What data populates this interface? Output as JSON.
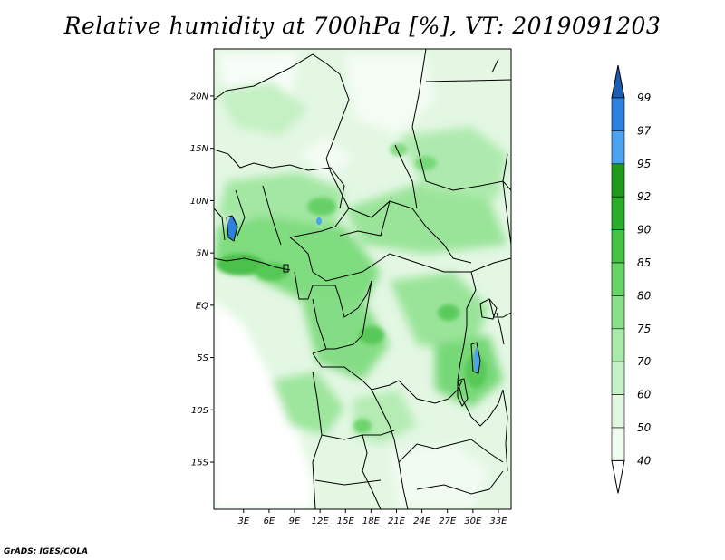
{
  "title": "Relative humidity at 700hPa [%], VT: 2019091203",
  "credit": "GrADS: IGES/COLA",
  "map": {
    "lat_range": [
      -19.5,
      24.5
    ],
    "lon_range": [
      -0.5,
      34.5
    ],
    "lat_ticks": [
      {
        "value": 20,
        "label": "20N"
      },
      {
        "value": 15,
        "label": "15N"
      },
      {
        "value": 10,
        "label": "10N"
      },
      {
        "value": 5,
        "label": "5N"
      },
      {
        "value": 0,
        "label": "EQ"
      },
      {
        "value": -5,
        "label": "5S"
      },
      {
        "value": -10,
        "label": "10S"
      },
      {
        "value": -15,
        "label": "15S"
      }
    ],
    "lon_ticks": [
      {
        "value": 3,
        "label": "3E"
      },
      {
        "value": 6,
        "label": "6E"
      },
      {
        "value": 9,
        "label": "9E"
      },
      {
        "value": 12,
        "label": "12E"
      },
      {
        "value": 15,
        "label": "15E"
      },
      {
        "value": 18,
        "label": "18E"
      },
      {
        "value": 21,
        "label": "21E"
      },
      {
        "value": 24,
        "label": "24E"
      },
      {
        "value": 27,
        "label": "27E"
      },
      {
        "value": 30,
        "label": "30E"
      },
      {
        "value": 33,
        "label": "33E"
      }
    ]
  },
  "colorbar": {
    "levels": [
      {
        "label": "99",
        "color": "#1c5fb0"
      },
      {
        "label": "97",
        "color": "#2d7fe0"
      },
      {
        "label": "95",
        "color": "#4da3f0"
      },
      {
        "label": "92",
        "color": "#1e9a1e"
      },
      {
        "label": "90",
        "color": "#2aad2a"
      },
      {
        "label": "85",
        "color": "#44c444"
      },
      {
        "label": "80",
        "color": "#66d466"
      },
      {
        "label": "75",
        "color": "#8ae08a"
      },
      {
        "label": "70",
        "color": "#a9e9a9"
      },
      {
        "label": "60",
        "color": "#c6f1c6"
      },
      {
        "label": "50",
        "color": "#e0f8e0"
      },
      {
        "label": "40",
        "color": "#f0fcf0"
      }
    ],
    "bottom_color": "#ffffff"
  }
}
